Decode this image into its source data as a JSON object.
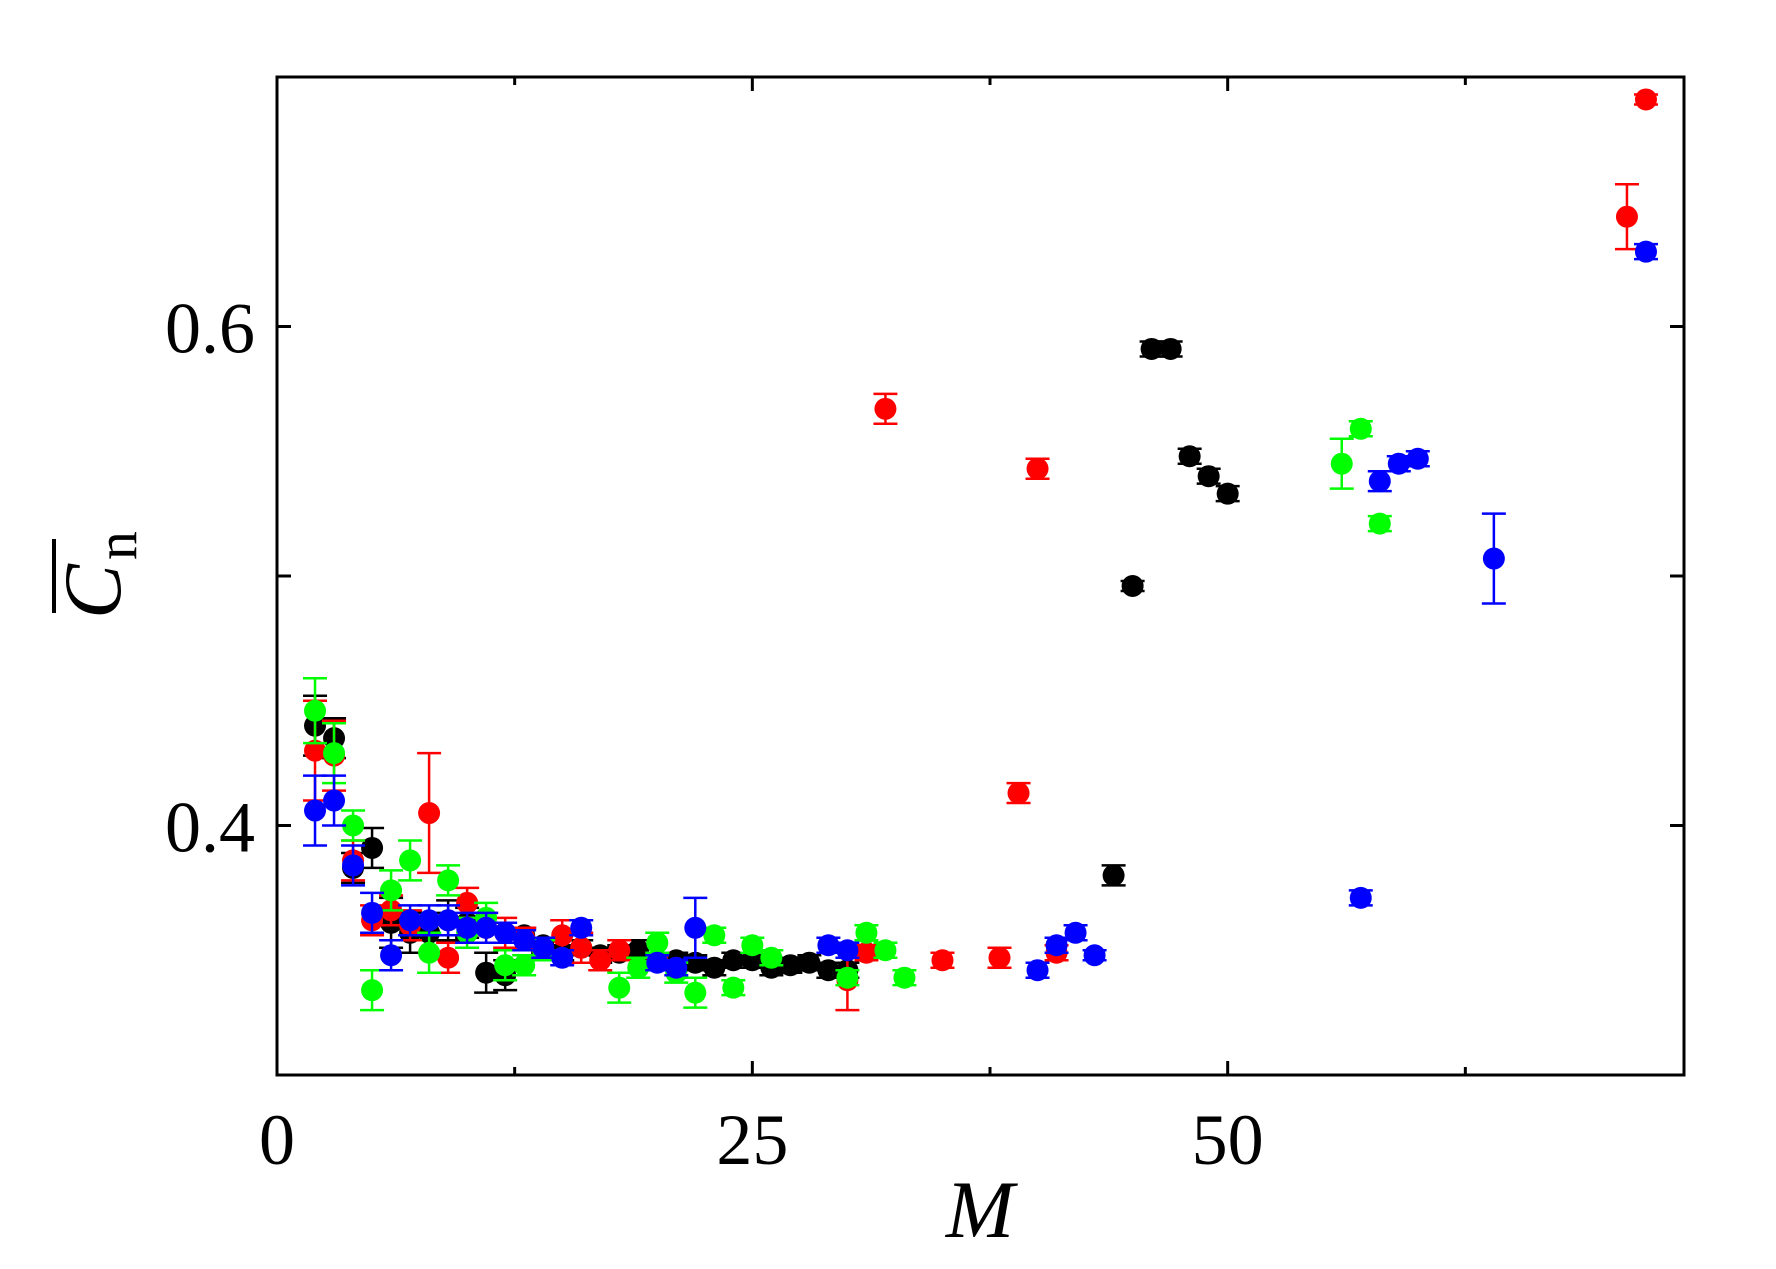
{
  "chart_data": {
    "type": "scatter",
    "title": "",
    "xlabel": "M",
    "ylabel": "C",
    "ylabel_subscript": "n",
    "xlim": [
      0,
      74
    ],
    "ylim": [
      0.3,
      0.7
    ],
    "x_ticks": [
      {
        "value": 0,
        "label": "0"
      },
      {
        "value": 25,
        "label": "25"
      },
      {
        "value": 50,
        "label": "50"
      }
    ],
    "y_ticks": [
      {
        "value": 0.4,
        "label": "0.4"
      },
      {
        "value": 0.5,
        "label": ""
      },
      {
        "value": 0.6,
        "label": "0.6"
      }
    ],
    "grid": false,
    "legend": "none",
    "series": [
      {
        "color": "#000000",
        "points": [
          {
            "x": 2,
            "y": 0.44,
            "err": 0.012
          },
          {
            "x": 3,
            "y": 0.435,
            "err": 0.008
          },
          {
            "x": 4,
            "y": 0.383,
            "err": 0.006
          },
          {
            "x": 5,
            "y": 0.391,
            "err": 0.008
          },
          {
            "x": 6,
            "y": 0.361,
            "err": 0.01
          },
          {
            "x": 7,
            "y": 0.357,
            "err": 0.008
          },
          {
            "x": 8,
            "y": 0.357,
            "err": 0.008
          },
          {
            "x": 9,
            "y": 0.362,
            "err": 0.008
          },
          {
            "x": 10,
            "y": 0.361,
            "err": 0.006
          },
          {
            "x": 11,
            "y": 0.341,
            "err": 0.008
          },
          {
            "x": 12,
            "y": 0.34,
            "err": 0.006
          },
          {
            "x": 13,
            "y": 0.356,
            "err": 0.003
          },
          {
            "x": 14,
            "y": 0.352,
            "err": 0.003
          },
          {
            "x": 15,
            "y": 0.349,
            "err": 0.003
          },
          {
            "x": 16,
            "y": 0.351,
            "err": 0.003
          },
          {
            "x": 17,
            "y": 0.348,
            "err": 0.003
          },
          {
            "x": 18,
            "y": 0.349,
            "err": 0.003
          },
          {
            "x": 19,
            "y": 0.35,
            "err": 0.004
          },
          {
            "x": 20,
            "y": 0.346,
            "err": 0.003
          },
          {
            "x": 21,
            "y": 0.346,
            "err": 0.003
          },
          {
            "x": 22,
            "y": 0.345,
            "err": 0.003
          },
          {
            "x": 23,
            "y": 0.343,
            "err": 0.003
          },
          {
            "x": 24,
            "y": 0.346,
            "err": 0.003
          },
          {
            "x": 25,
            "y": 0.346,
            "err": 0.003
          },
          {
            "x": 26,
            "y": 0.343,
            "err": 0.003
          },
          {
            "x": 27,
            "y": 0.344,
            "err": 0.003
          },
          {
            "x": 28,
            "y": 0.345,
            "err": 0.003
          },
          {
            "x": 29,
            "y": 0.342,
            "err": 0.003
          },
          {
            "x": 30,
            "y": 0.342,
            "err": 0.003
          },
          {
            "x": 44,
            "y": 0.38,
            "err": 0.004
          },
          {
            "x": 45,
            "y": 0.496,
            "err": 0.002
          },
          {
            "x": 46,
            "y": 0.591,
            "err": 0.003
          },
          {
            "x": 47,
            "y": 0.591,
            "err": 0.003
          },
          {
            "x": 48,
            "y": 0.548,
            "err": 0.003
          },
          {
            "x": 49,
            "y": 0.54,
            "err": 0.003
          },
          {
            "x": 50,
            "y": 0.533,
            "err": 0.003
          }
        ]
      },
      {
        "color": "#ff0000",
        "points": [
          {
            "x": 2,
            "y": 0.43,
            "err": 0.02
          },
          {
            "x": 3,
            "y": 0.428,
            "err": 0.014
          },
          {
            "x": 4,
            "y": 0.386,
            "err": 0.008
          },
          {
            "x": 5,
            "y": 0.362,
            "err": 0.006
          },
          {
            "x": 6,
            "y": 0.366,
            "err": 0.006
          },
          {
            "x": 7,
            "y": 0.36,
            "err": 0.006
          },
          {
            "x": 8,
            "y": 0.405,
            "err": 0.024
          },
          {
            "x": 9,
            "y": 0.347,
            "err": 0.006
          },
          {
            "x": 10,
            "y": 0.369,
            "err": 0.006
          },
          {
            "x": 11,
            "y": 0.359,
            "err": 0.006
          },
          {
            "x": 12,
            "y": 0.357,
            "err": 0.006
          },
          {
            "x": 13,
            "y": 0.355,
            "err": 0.004
          },
          {
            "x": 14,
            "y": 0.35,
            "err": 0.004
          },
          {
            "x": 15,
            "y": 0.356,
            "err": 0.006
          },
          {
            "x": 16,
            "y": 0.351,
            "err": 0.006
          },
          {
            "x": 17,
            "y": 0.346,
            "err": 0.004
          },
          {
            "x": 18,
            "y": 0.35,
            "err": 0.004
          },
          {
            "x": 20,
            "y": 0.346,
            "err": 0.003
          },
          {
            "x": 30,
            "y": 0.338,
            "err": 0.012
          },
          {
            "x": 31,
            "y": 0.349,
            "err": 0.003
          },
          {
            "x": 32,
            "y": 0.567,
            "err": 0.006
          },
          {
            "x": 35,
            "y": 0.346,
            "err": 0.003
          },
          {
            "x": 38,
            "y": 0.347,
            "err": 0.004
          },
          {
            "x": 39,
            "y": 0.413,
            "err": 0.004
          },
          {
            "x": 40,
            "y": 0.543,
            "err": 0.004
          },
          {
            "x": 41,
            "y": 0.349,
            "err": 0.003
          },
          {
            "x": 71,
            "y": 0.644,
            "err": 0.013
          },
          {
            "x": 72,
            "y": 0.691,
            "err": 0.002
          }
        ]
      },
      {
        "color": "#00ff00",
        "points": [
          {
            "x": 2,
            "y": 0.446,
            "err": 0.013
          },
          {
            "x": 3,
            "y": 0.429,
            "err": 0.012
          },
          {
            "x": 4,
            "y": 0.4,
            "err": 0.006
          },
          {
            "x": 5,
            "y": 0.334,
            "err": 0.008
          },
          {
            "x": 6,
            "y": 0.374,
            "err": 0.008
          },
          {
            "x": 7,
            "y": 0.386,
            "err": 0.008
          },
          {
            "x": 8,
            "y": 0.349,
            "err": 0.008
          },
          {
            "x": 9,
            "y": 0.378,
            "err": 0.006
          },
          {
            "x": 10,
            "y": 0.357,
            "err": 0.006
          },
          {
            "x": 11,
            "y": 0.363,
            "err": 0.006
          },
          {
            "x": 12,
            "y": 0.344,
            "err": 0.006
          },
          {
            "x": 13,
            "y": 0.344,
            "err": 0.004
          },
          {
            "x": 14,
            "y": 0.35,
            "err": 0.004
          },
          {
            "x": 18,
            "y": 0.335,
            "err": 0.006
          },
          {
            "x": 19,
            "y": 0.343,
            "err": 0.004
          },
          {
            "x": 20,
            "y": 0.353,
            "err": 0.004
          },
          {
            "x": 21,
            "y": 0.341,
            "err": 0.004
          },
          {
            "x": 22,
            "y": 0.333,
            "err": 0.006
          },
          {
            "x": 23,
            "y": 0.356,
            "err": 0.003
          },
          {
            "x": 24,
            "y": 0.335,
            "err": 0.003
          },
          {
            "x": 25,
            "y": 0.352,
            "err": 0.003
          },
          {
            "x": 26,
            "y": 0.347,
            "err": 0.003
          },
          {
            "x": 30,
            "y": 0.339,
            "err": 0.003
          },
          {
            "x": 31,
            "y": 0.357,
            "err": 0.003
          },
          {
            "x": 32,
            "y": 0.35,
            "err": 0.003
          },
          {
            "x": 33,
            "y": 0.339,
            "err": 0.003
          },
          {
            "x": 56,
            "y": 0.545,
            "err": 0.01
          },
          {
            "x": 57,
            "y": 0.559,
            "err": 0.003
          },
          {
            "x": 58,
            "y": 0.521,
            "err": 0.003
          }
        ]
      },
      {
        "color": "#0000ff",
        "points": [
          {
            "x": 2,
            "y": 0.406,
            "err": 0.014
          },
          {
            "x": 3,
            "y": 0.41,
            "err": 0.01
          },
          {
            "x": 4,
            "y": 0.384,
            "err": 0.008
          },
          {
            "x": 5,
            "y": 0.365,
            "err": 0.008
          },
          {
            "x": 6,
            "y": 0.348,
            "err": 0.006
          },
          {
            "x": 7,
            "y": 0.362,
            "err": 0.006
          },
          {
            "x": 8,
            "y": 0.362,
            "err": 0.006
          },
          {
            "x": 9,
            "y": 0.362,
            "err": 0.006
          },
          {
            "x": 10,
            "y": 0.359,
            "err": 0.006
          },
          {
            "x": 11,
            "y": 0.359,
            "err": 0.006
          },
          {
            "x": 12,
            "y": 0.357,
            "err": 0.004
          },
          {
            "x": 13,
            "y": 0.354,
            "err": 0.004
          },
          {
            "x": 14,
            "y": 0.351,
            "err": 0.004
          },
          {
            "x": 15,
            "y": 0.347,
            "err": 0.003
          },
          {
            "x": 16,
            "y": 0.359,
            "err": 0.003
          },
          {
            "x": 20,
            "y": 0.345,
            "err": 0.003
          },
          {
            "x": 21,
            "y": 0.343,
            "err": 0.003
          },
          {
            "x": 22,
            "y": 0.359,
            "err": 0.012
          },
          {
            "x": 29,
            "y": 0.352,
            "err": 0.003
          },
          {
            "x": 30,
            "y": 0.35,
            "err": 0.003
          },
          {
            "x": 40,
            "y": 0.342,
            "err": 0.003
          },
          {
            "x": 41,
            "y": 0.352,
            "err": 0.003
          },
          {
            "x": 42,
            "y": 0.357,
            "err": 0.003
          },
          {
            "x": 43,
            "y": 0.348,
            "err": 0.002
          },
          {
            "x": 57,
            "y": 0.371,
            "err": 0.003
          },
          {
            "x": 58,
            "y": 0.538,
            "err": 0.004
          },
          {
            "x": 59,
            "y": 0.545,
            "err": 0.003
          },
          {
            "x": 60,
            "y": 0.547,
            "err": 0.003
          },
          {
            "x": 64,
            "y": 0.507,
            "err": 0.018
          },
          {
            "x": 72,
            "y": 0.63,
            "err": 0.003
          }
        ]
      }
    ]
  }
}
